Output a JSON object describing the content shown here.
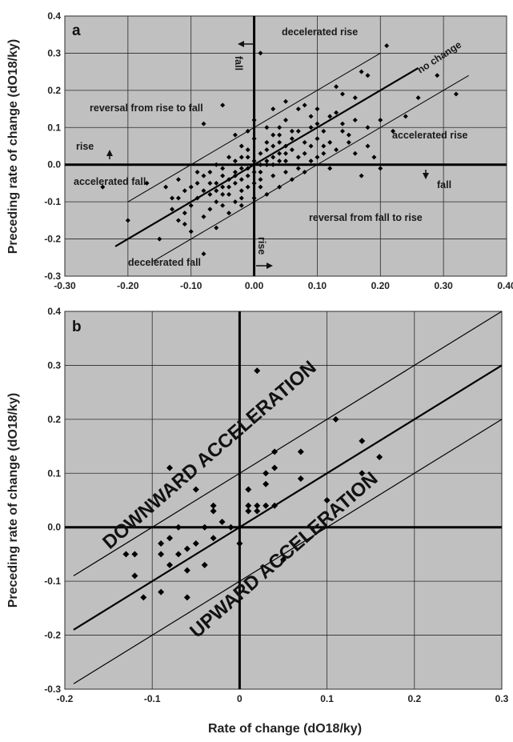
{
  "chart_data": [
    {
      "type": "scatter",
      "panel": "a",
      "xlabel": "",
      "ylabel": "Preceding rate of change (dO18/ky)",
      "xlim": [
        -0.3,
        0.4
      ],
      "ylim": [
        -0.3,
        0.4
      ],
      "x_ticks": [
        "-0.30",
        "-0.20",
        "-0.10",
        "0.00",
        "0.10",
        "0.20",
        "0.30",
        "0.40"
      ],
      "y_ticks": [
        "-0.3",
        "-0.2",
        "-0.1",
        "0.0",
        "0.1",
        "0.2",
        "0.3",
        "0.4"
      ],
      "grid": true,
      "annotations": {
        "decelerated_rise": "decelerated rise",
        "no_change": "no change",
        "reversal_rise_to_fall": "reversal from rise to fall",
        "accelerated_rise": "accelerated rise",
        "rise_left": "rise",
        "fall_right": "fall",
        "accelerated_fall": "accelerated fall",
        "reversal_fall_to_rise": "reversal from fall to rise",
        "decelerated_fall": "decelerated fall",
        "fall_top": "fall",
        "rise_bottom": "rise"
      },
      "reference_lines": [
        {
          "role": "no change",
          "slope": 1,
          "intercept": 0.0,
          "x_range": [
            -0.22,
            0.26
          ]
        },
        {
          "role": "upper band",
          "slope": 1,
          "intercept": 0.1,
          "x_range": [
            -0.2,
            0.2
          ]
        },
        {
          "role": "lower band",
          "slope": 1,
          "intercept": -0.1,
          "x_range": [
            -0.16,
            0.34
          ]
        }
      ],
      "points": [
        [
          0.01,
          0.3
        ],
        [
          0.21,
          0.32
        ],
        [
          0.29,
          0.24
        ],
        [
          0.32,
          0.19
        ],
        [
          0.18,
          0.24
        ],
        [
          0.17,
          0.25
        ],
        [
          0.16,
          0.18
        ],
        [
          0.14,
          0.19
        ],
        [
          0.13,
          0.21
        ],
        [
          0.12,
          0.13
        ],
        [
          0.14,
          0.11
        ],
        [
          0.15,
          0.08
        ],
        [
          0.18,
          0.1
        ],
        [
          0.2,
          0.12
        ],
        [
          0.22,
          0.09
        ],
        [
          0.11,
          0.09
        ],
        [
          0.09,
          0.13
        ],
        [
          0.07,
          0.15
        ],
        [
          0.05,
          0.12
        ],
        [
          0.04,
          0.1
        ],
        [
          0.05,
          0.17
        ],
        [
          0.08,
          0.16
        ],
        [
          0.1,
          0.15
        ],
        [
          0.03,
          0.15
        ],
        [
          -0.05,
          0.16
        ],
        [
          -0.08,
          0.11
        ],
        [
          -0.03,
          0.08
        ],
        [
          0.0,
          0.07
        ],
        [
          0.02,
          0.06
        ],
        [
          -0.01,
          0.09
        ],
        [
          -0.24,
          -0.06
        ],
        [
          -0.2,
          -0.15
        ],
        [
          -0.17,
          -0.05
        ],
        [
          -0.15,
          -0.2
        ],
        [
          -0.13,
          -0.12
        ],
        [
          -0.12,
          -0.09
        ],
        [
          -0.11,
          -0.16
        ],
        [
          -0.1,
          -0.18
        ],
        [
          -0.08,
          -0.24
        ],
        [
          -0.09,
          -0.05
        ],
        [
          -0.07,
          -0.12
        ],
        [
          -0.06,
          -0.17
        ],
        [
          -0.05,
          -0.08
        ],
        [
          -0.04,
          -0.04
        ],
        [
          -0.03,
          -0.1
        ],
        [
          -0.02,
          -0.07
        ],
        [
          -0.01,
          -0.03
        ],
        [
          0.0,
          -0.05
        ],
        [
          0.01,
          -0.02
        ],
        [
          0.02,
          0.0
        ],
        [
          0.03,
          0.02
        ],
        [
          0.04,
          0.03
        ],
        [
          0.05,
          0.01
        ],
        [
          0.06,
          0.04
        ],
        [
          0.07,
          0.02
        ],
        [
          0.08,
          0.06
        ],
        [
          0.09,
          0.05
        ],
        [
          0.1,
          0.07
        ],
        [
          0.11,
          0.03
        ],
        [
          0.12,
          0.06
        ],
        [
          0.13,
          0.04
        ],
        [
          0.15,
          0.06
        ],
        [
          0.16,
          0.03
        ],
        [
          0.18,
          0.05
        ],
        [
          0.19,
          0.02
        ],
        [
          0.2,
          -0.01
        ],
        [
          0.17,
          -0.03
        ],
        [
          0.12,
          -0.01
        ],
        [
          0.08,
          -0.02
        ],
        [
          0.06,
          -0.04
        ],
        [
          0.04,
          -0.06
        ],
        [
          0.02,
          -0.08
        ],
        [
          0.0,
          -0.09
        ],
        [
          -0.02,
          -0.11
        ],
        [
          -0.04,
          -0.13
        ],
        [
          -0.06,
          -0.1
        ],
        [
          -0.08,
          -0.07
        ],
        [
          -0.1,
          -0.06
        ],
        [
          -0.12,
          -0.04
        ],
        [
          -0.14,
          -0.06
        ],
        [
          -0.07,
          -0.02
        ],
        [
          -0.05,
          -0.03
        ],
        [
          -0.03,
          -0.02
        ],
        [
          -0.02,
          -0.04
        ],
        [
          -0.01,
          -0.06
        ],
        [
          0.01,
          -0.04
        ],
        [
          0.03,
          -0.03
        ],
        [
          0.05,
          -0.02
        ],
        [
          0.0,
          0.01
        ],
        [
          -0.01,
          0.02
        ],
        [
          -0.03,
          0.01
        ],
        [
          -0.05,
          -0.01
        ],
        [
          -0.06,
          -0.05
        ],
        [
          -0.04,
          -0.06
        ],
        [
          -0.02,
          -0.01
        ],
        [
          0.01,
          0.03
        ],
        [
          0.02,
          0.04
        ],
        [
          0.03,
          0.05
        ],
        [
          0.04,
          0.06
        ],
        [
          0.06,
          0.07
        ],
        [
          0.07,
          0.09
        ],
        [
          0.09,
          0.1
        ],
        [
          0.1,
          0.11
        ],
        [
          0.02,
          0.1
        ],
        [
          0.0,
          0.12
        ],
        [
          -0.02,
          0.05
        ],
        [
          -0.04,
          0.02
        ],
        [
          -0.06,
          0.0
        ],
        [
          -0.08,
          -0.03
        ],
        [
          -0.09,
          -0.09
        ],
        [
          -0.1,
          -0.11
        ],
        [
          -0.11,
          -0.07
        ],
        [
          -0.13,
          -0.09
        ],
        [
          -0.07,
          -0.08
        ],
        [
          -0.05,
          -0.06
        ],
        [
          -0.03,
          -0.05
        ],
        [
          -0.01,
          -0.01
        ],
        [
          0.01,
          0.0
        ],
        [
          0.03,
          0.0
        ],
        [
          0.05,
          0.03
        ],
        [
          -0.02,
          0.02
        ],
        [
          -0.03,
          -0.03
        ],
        [
          0.0,
          -0.02
        ],
        [
          0.02,
          0.01
        ],
        [
          0.04,
          0.01
        ],
        [
          -0.06,
          -0.07
        ],
        [
          -0.07,
          -0.05
        ],
        [
          -0.04,
          -0.08
        ],
        [
          0.08,
          0.03
        ],
        [
          0.11,
          0.05
        ],
        [
          0.14,
          0.09
        ],
        [
          0.13,
          0.14
        ],
        [
          0.16,
          0.12
        ],
        [
          0.24,
          0.13
        ],
        [
          0.26,
          0.18
        ],
        [
          0.03,
          0.08
        ],
        [
          -0.01,
          0.04
        ],
        [
          0.06,
          0.09
        ],
        [
          -0.09,
          -0.02
        ],
        [
          -0.11,
          -0.13
        ],
        [
          -0.02,
          -0.09
        ],
        [
          0.07,
          -0.01
        ],
        [
          0.09,
          0.01
        ],
        [
          0.1,
          0.02
        ],
        [
          0.01,
          -0.06
        ],
        [
          -0.05,
          -0.11
        ],
        [
          -0.08,
          -0.14
        ],
        [
          -0.12,
          -0.15
        ],
        [
          0.04,
          0.08
        ],
        [
          0.05,
          0.05
        ]
      ]
    },
    {
      "type": "scatter",
      "panel": "b",
      "xlabel": "Rate of change (dO18/ky)",
      "ylabel": "Preceding rate of change (dO18/ky)",
      "xlim": [
        -0.2,
        0.3
      ],
      "ylim": [
        -0.3,
        0.4
      ],
      "x_ticks": [
        "-0.2",
        "-0.1",
        "0",
        "0.1",
        "0.2",
        "0.3"
      ],
      "y_ticks": [
        "-0.3",
        "-0.2",
        "-0.1",
        "0.0",
        "0.1",
        "0.2",
        "0.3",
        "0.4"
      ],
      "grid": true,
      "annotations": {
        "downward": "DOWNWARD ACCELERATION",
        "upward": "UPWARD ACCELERATION"
      },
      "reference_lines": [
        {
          "role": "no change",
          "slope": 1,
          "intercept": 0.0,
          "x_range": [
            -0.19,
            0.3
          ]
        },
        {
          "role": "upper band",
          "slope": 1,
          "intercept": 0.1,
          "x_range": [
            -0.19,
            0.3
          ]
        },
        {
          "role": "lower band",
          "slope": 1,
          "intercept": -0.1,
          "x_range": [
            -0.19,
            0.3
          ]
        }
      ],
      "points": [
        [
          0.02,
          0.29
        ],
        [
          0.11,
          0.2
        ],
        [
          0.14,
          0.16
        ],
        [
          0.16,
          0.13
        ],
        [
          0.14,
          0.1
        ],
        [
          0.1,
          0.05
        ],
        [
          0.07,
          0.14
        ],
        [
          0.07,
          0.09
        ],
        [
          0.04,
          0.14
        ],
        [
          0.04,
          0.11
        ],
        [
          0.03,
          0.1
        ],
        [
          0.03,
          0.08
        ],
        [
          0.03,
          0.04
        ],
        [
          0.02,
          0.03
        ],
        [
          0.01,
          0.07
        ],
        [
          0.01,
          0.04
        ],
        [
          0.01,
          0.03
        ],
        [
          -0.08,
          0.11
        ],
        [
          -0.05,
          0.07
        ],
        [
          -0.03,
          0.04
        ],
        [
          -0.03,
          0.03
        ],
        [
          -0.02,
          0.01
        ],
        [
          -0.01,
          0.0
        ],
        [
          0.0,
          -0.03
        ],
        [
          -0.04,
          0.0
        ],
        [
          -0.05,
          -0.03
        ],
        [
          -0.06,
          -0.04
        ],
        [
          -0.07,
          -0.05
        ],
        [
          -0.07,
          0.0
        ],
        [
          -0.08,
          -0.02
        ],
        [
          -0.09,
          -0.03
        ],
        [
          -0.09,
          -0.05
        ],
        [
          -0.08,
          -0.07
        ],
        [
          -0.06,
          -0.08
        ],
        [
          -0.04,
          -0.07
        ],
        [
          -0.03,
          -0.02
        ],
        [
          -0.12,
          -0.05
        ],
        [
          -0.13,
          -0.05
        ],
        [
          -0.12,
          -0.09
        ],
        [
          -0.11,
          -0.13
        ],
        [
          -0.09,
          -0.12
        ],
        [
          -0.06,
          -0.13
        ],
        [
          0.04,
          0.04
        ],
        [
          0.05,
          -0.06
        ],
        [
          0.02,
          0.04
        ]
      ]
    }
  ]
}
